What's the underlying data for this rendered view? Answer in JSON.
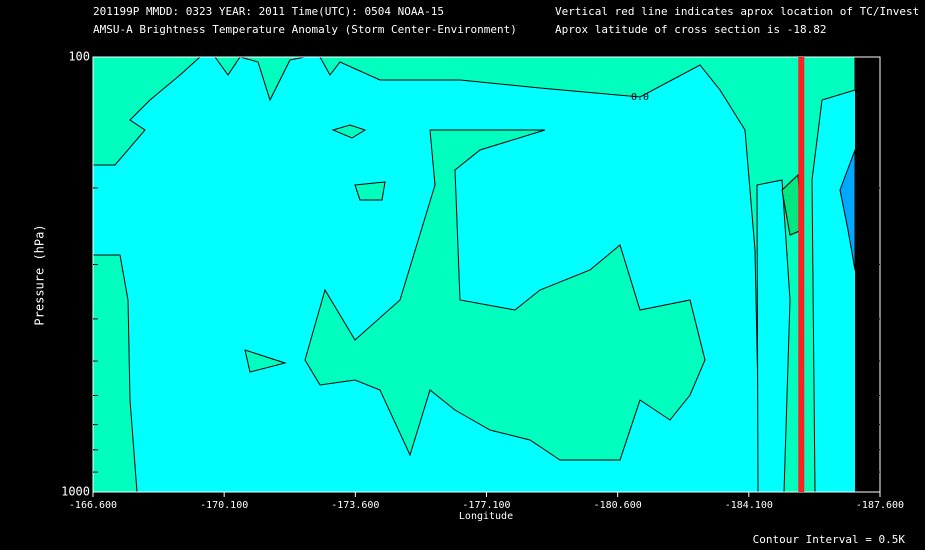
{
  "chart_data": {
    "type": "contour",
    "title": "201199P  MMDD: 0323 YEAR: 2011 Time(UTC): 0504 NOAA-15",
    "subtitle": "AMSU-A Brightness Temperature Anomaly (Storm Center-Environment)",
    "annotations": [
      "Vertical red line indicates aprox location of TC/Invest",
      "Aprox latitude of cross section is -18.82",
      "Contour Interval = 0.5K"
    ],
    "xlabel": "Longitude",
    "ylabel": "Pressure (hPa)",
    "xlim": [
      -166.6,
      -187.6
    ],
    "xticks": [
      {
        "value": -166.6,
        "label": "-166.600"
      },
      {
        "value": -170.1,
        "label": "-170.100"
      },
      {
        "value": -173.6,
        "label": "-173.600"
      },
      {
        "value": -177.1,
        "label": "-177.100"
      },
      {
        "value": -180.6,
        "label": "-180.600"
      },
      {
        "value": -184.1,
        "label": "-184.100"
      },
      {
        "value": -187.6,
        "label": "-187.600"
      }
    ],
    "ylim": [
      1000,
      100
    ],
    "yticks": [
      100,
      1000
    ],
    "y_minor_ticks": [
      200,
      300,
      400,
      500,
      600,
      700,
      800,
      900
    ],
    "log_scale_y": true,
    "contour_labels": [
      "0.0"
    ],
    "tc_longitude": -185.5,
    "tc_color": "#ff2020"
  }
}
